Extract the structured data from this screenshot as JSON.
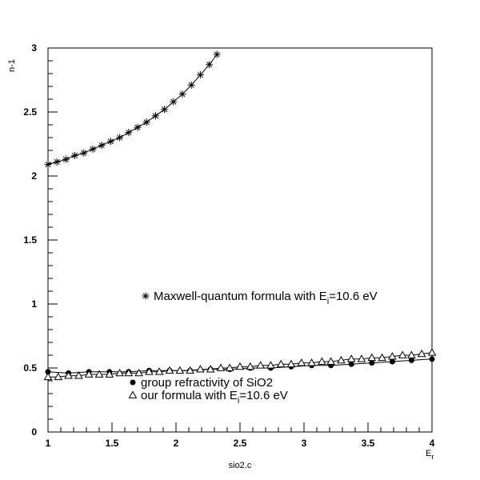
{
  "chart_data": {
    "type": "scatter",
    "title": "",
    "xlabel": "E_r",
    "ylabel": "n-1",
    "footer": "sio2.c",
    "xlim": [
      1,
      4
    ],
    "ylim": [
      0,
      3
    ],
    "x_ticks": [
      "1",
      "1.5",
      "2",
      "2.5",
      "3",
      "3.5",
      "4"
    ],
    "y_ticks": [
      "0",
      "0.5",
      "1",
      "1.5",
      "2",
      "2.5",
      "3"
    ],
    "series": [
      {
        "name": "Maxwell-quantum formula with E_i=10.6 eV",
        "marker": "asterisk",
        "x": [
          1.0,
          1.07,
          1.14,
          1.21,
          1.28,
          1.35,
          1.42,
          1.49,
          1.56,
          1.63,
          1.7,
          1.77,
          1.84,
          1.91,
          1.98,
          2.05,
          2.12,
          2.19,
          2.26,
          2.32
        ],
        "y": [
          2.09,
          2.11,
          2.13,
          2.16,
          2.18,
          2.21,
          2.24,
          2.27,
          2.3,
          2.34,
          2.38,
          2.42,
          2.47,
          2.52,
          2.58,
          2.64,
          2.71,
          2.79,
          2.87,
          2.95
        ]
      },
      {
        "name": "group refractivity of SiO2",
        "marker": "filled-circle",
        "x": [
          1.0,
          1.16,
          1.32,
          1.48,
          1.63,
          1.79,
          1.95,
          2.11,
          2.27,
          2.42,
          2.58,
          2.74,
          2.9,
          3.06,
          3.21,
          3.37,
          3.53,
          3.69,
          3.84,
          4.0
        ],
        "y": [
          0.47,
          0.46,
          0.47,
          0.47,
          0.47,
          0.48,
          0.48,
          0.48,
          0.49,
          0.49,
          0.5,
          0.5,
          0.51,
          0.52,
          0.52,
          0.53,
          0.54,
          0.55,
          0.56,
          0.57
        ]
      },
      {
        "name": "our formula with E_i=10.6 eV",
        "marker": "open-triangle",
        "x": [
          1.0,
          1.08,
          1.16,
          1.24,
          1.32,
          1.4,
          1.48,
          1.56,
          1.63,
          1.71,
          1.79,
          1.87,
          1.95,
          2.03,
          2.11,
          2.19,
          2.27,
          2.35,
          2.42,
          2.5,
          2.58,
          2.66,
          2.74,
          2.82,
          2.9,
          2.98,
          3.06,
          3.14,
          3.21,
          3.29,
          3.37,
          3.45,
          3.53,
          3.61,
          3.69,
          3.77,
          3.84,
          3.92,
          4.0
        ],
        "y": [
          0.43,
          0.43,
          0.44,
          0.44,
          0.45,
          0.45,
          0.45,
          0.46,
          0.46,
          0.46,
          0.47,
          0.47,
          0.48,
          0.48,
          0.48,
          0.49,
          0.49,
          0.5,
          0.5,
          0.51,
          0.51,
          0.52,
          0.52,
          0.53,
          0.53,
          0.54,
          0.54,
          0.55,
          0.55,
          0.56,
          0.57,
          0.57,
          0.58,
          0.58,
          0.59,
          0.6,
          0.6,
          0.61,
          0.62
        ]
      }
    ],
    "legend": {
      "entry1_text": "Maxwell-quantum formula with E",
      "entry1_sub": "i",
      "entry1_tail": "=10.6 eV",
      "entry2_text": "group refractivity of SiO2",
      "entry3_text": "our formula with E",
      "entry3_sub": "i",
      "entry3_tail": "=10.6 eV"
    },
    "grid": false
  }
}
